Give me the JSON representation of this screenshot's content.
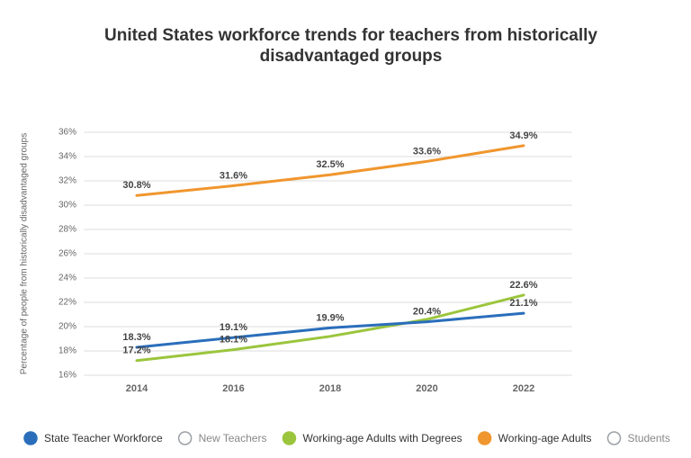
{
  "chart_data": {
    "type": "line",
    "title": [
      "United States workforce trends for teachers from historically",
      "disadvantaged groups"
    ],
    "ylabel": "Percentage of people from historically disadvantaged groups",
    "categories": [
      "2014",
      "2016",
      "2018",
      "2020",
      "2022"
    ],
    "ylim": [
      16,
      36
    ],
    "yticks": [
      {
        "value": 16,
        "label": "16%"
      },
      {
        "value": 18,
        "label": "18%"
      },
      {
        "value": 20,
        "label": "20%"
      },
      {
        "value": 22,
        "label": "22%"
      },
      {
        "value": 24,
        "label": "24%"
      },
      {
        "value": 26,
        "label": "26%"
      },
      {
        "value": 28,
        "label": "28%"
      },
      {
        "value": 30,
        "label": "30%"
      },
      {
        "value": 32,
        "label": "32%"
      },
      {
        "value": 34,
        "label": "34%"
      },
      {
        "value": 36,
        "label": "36%"
      }
    ],
    "grid": true,
    "series": [
      {
        "name": "State Teacher Workforce",
        "color": "#2a6ebb",
        "values": [
          18.3,
          19.1,
          19.9,
          20.4,
          21.1
        ],
        "value_labels": [
          "18.3%",
          "19.1%",
          "19.9%",
          "20.4%",
          "21.1%"
        ]
      },
      {
        "name": "New Teachers",
        "color": "#9aa0a6",
        "hidden": true,
        "values": [
          null,
          null,
          null,
          null,
          null
        ]
      },
      {
        "name": "Working-age Adults with Degrees",
        "color": "#9bc53d",
        "values": [
          17.2,
          18.1,
          19.2,
          20.6,
          22.6
        ],
        "value_labels": [
          "17.2%",
          "18.1%",
          null,
          null,
          "22.6%"
        ]
      },
      {
        "name": "Working-age Adults",
        "color": "#f0962e",
        "values": [
          30.8,
          31.6,
          32.5,
          33.6,
          34.9
        ],
        "value_labels": [
          "30.8%",
          "31.6%",
          "32.5%",
          "33.6%",
          "34.9%"
        ]
      },
      {
        "name": "Students",
        "color": "#9aa0a6",
        "hidden": true,
        "values": [
          null,
          null,
          null,
          null,
          null
        ]
      }
    ]
  }
}
